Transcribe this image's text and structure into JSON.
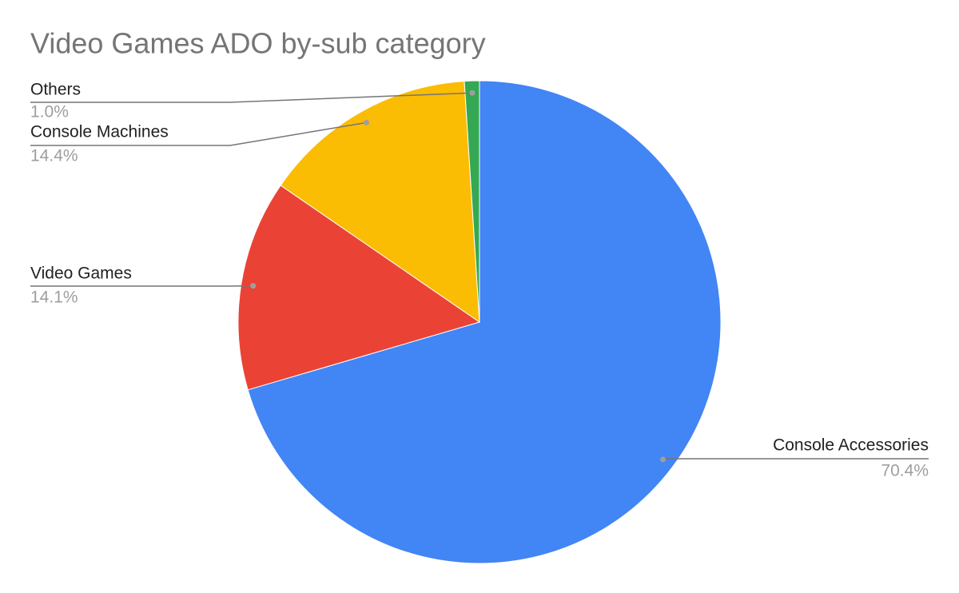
{
  "chart_data": {
    "type": "pie",
    "title": "Video Games ADO by-sub category",
    "categories": [
      "Console Accessories",
      "Video Games",
      "Console Machines",
      "Others"
    ],
    "values": [
      70.4,
      14.1,
      14.4,
      1.0
    ],
    "value_labels": [
      "70.4%",
      "14.1%",
      "14.4%",
      "1.0%"
    ],
    "colors": [
      "#4285f4",
      "#ea4335",
      "#fbbc04",
      "#34a853"
    ]
  }
}
